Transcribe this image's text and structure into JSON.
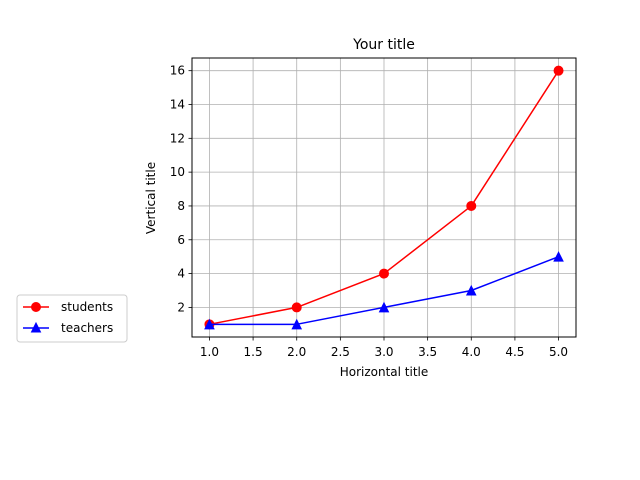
{
  "chart_data": {
    "type": "line",
    "title": "Your title",
    "xlabel": "Horizontal title",
    "ylabel": "Vertical title",
    "x": [
      1.0,
      2.0,
      3.0,
      4.0,
      5.0
    ],
    "xticks": [
      "1.0",
      "1.5",
      "2.0",
      "2.5",
      "3.0",
      "3.5",
      "4.0",
      "4.5",
      "5.0"
    ],
    "yticks": [
      "2",
      "4",
      "6",
      "8",
      "10",
      "12",
      "14",
      "16"
    ],
    "xlim": [
      0.8,
      5.2
    ],
    "ylim": [
      0.25,
      16.75
    ],
    "grid": true,
    "legend_position": "outside-left",
    "series": [
      {
        "name": "students",
        "values": [
          1,
          2,
          4,
          8,
          16
        ],
        "color": "#ff0000",
        "marker": "circle"
      },
      {
        "name": "teachers",
        "values": [
          1,
          1,
          2,
          3,
          5
        ],
        "color": "#0000ff",
        "marker": "triangle"
      }
    ]
  }
}
